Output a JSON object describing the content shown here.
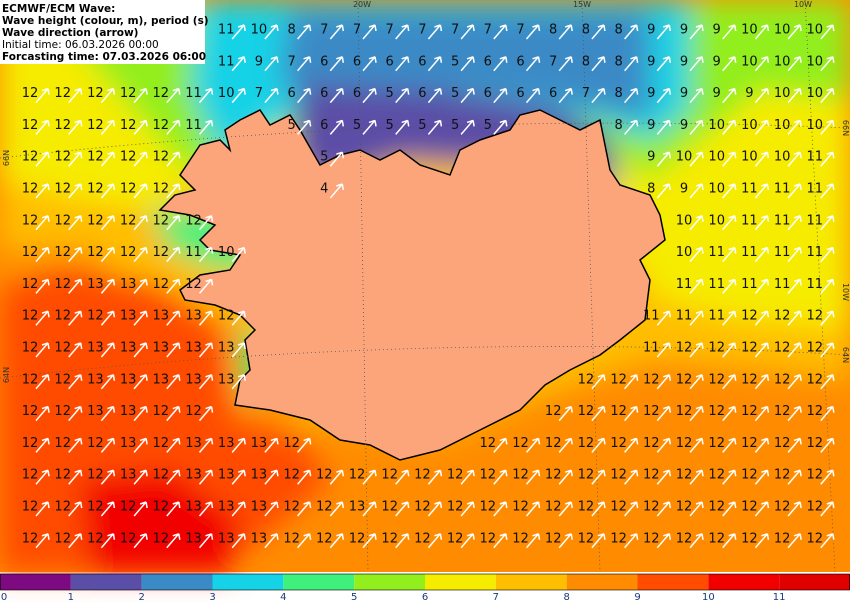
{
  "header": {
    "lines": [
      "ECMWF/ECM Wave:",
      "Wave height (colour, m), period (s)",
      "Wave direction (arrow)",
      "Initial time: 06.03.2026 00:00",
      "Forcasting time: 07.03.2026 06:00"
    ]
  },
  "graticule": {
    "top": [
      "20W",
      "15W",
      "10W"
    ],
    "right": [
      "66N",
      "10W",
      "64N"
    ],
    "left": [
      "66N",
      "64N"
    ]
  },
  "periods": {
    "rows": [
      [
        null,
        null,
        null,
        null,
        null,
        null,
        11,
        10,
        8,
        7,
        7,
        7,
        7,
        7,
        7,
        7,
        8,
        8,
        8,
        9,
        9,
        9,
        10,
        10,
        10
      ],
      [
        null,
        null,
        null,
        null,
        null,
        null,
        11,
        9,
        7,
        6,
        6,
        6,
        6,
        5,
        6,
        6,
        7,
        8,
        8,
        9,
        9,
        9,
        10,
        10,
        10
      ],
      [
        12,
        12,
        12,
        12,
        12,
        11,
        10,
        7,
        6,
        6,
        6,
        5,
        6,
        5,
        6,
        6,
        6,
        7,
        8,
        9,
        9,
        9,
        9,
        10,
        10
      ],
      [
        12,
        12,
        12,
        12,
        12,
        11,
        null,
        null,
        5,
        6,
        5,
        5,
        5,
        5,
        5,
        null,
        null,
        null,
        8,
        9,
        9,
        10,
        10,
        10,
        10
      ],
      [
        12,
        12,
        12,
        12,
        12,
        null,
        null,
        null,
        null,
        5,
        null,
        null,
        null,
        null,
        null,
        null,
        null,
        null,
        null,
        9,
        10,
        10,
        10,
        10,
        11
      ],
      [
        12,
        12,
        12,
        12,
        12,
        null,
        null,
        null,
        null,
        4,
        null,
        null,
        null,
        null,
        null,
        null,
        null,
        null,
        null,
        8,
        9,
        10,
        11,
        11,
        11
      ],
      [
        12,
        12,
        12,
        12,
        12,
        12,
        null,
        null,
        null,
        null,
        null,
        null,
        null,
        null,
        null,
        null,
        null,
        null,
        null,
        null,
        10,
        10,
        11,
        11,
        11
      ],
      [
        12,
        12,
        12,
        12,
        12,
        11,
        10,
        null,
        null,
        null,
        null,
        null,
        null,
        null,
        null,
        null,
        null,
        null,
        null,
        null,
        10,
        11,
        11,
        11,
        11
      ],
      [
        12,
        12,
        13,
        13,
        12,
        12,
        null,
        null,
        null,
        null,
        null,
        null,
        null,
        null,
        null,
        null,
        null,
        null,
        null,
        null,
        11,
        11,
        11,
        11,
        11
      ],
      [
        12,
        12,
        12,
        13,
        13,
        13,
        12,
        null,
        null,
        null,
        null,
        null,
        null,
        null,
        null,
        null,
        null,
        null,
        null,
        11,
        11,
        11,
        12,
        12,
        12
      ],
      [
        12,
        12,
        13,
        13,
        13,
        13,
        13,
        null,
        null,
        null,
        null,
        null,
        null,
        null,
        null,
        null,
        null,
        null,
        null,
        11,
        12,
        12,
        12,
        12,
        12
      ],
      [
        12,
        12,
        13,
        13,
        13,
        13,
        13,
        null,
        null,
        null,
        null,
        null,
        null,
        null,
        null,
        null,
        null,
        12,
        12,
        12,
        12,
        12,
        12,
        12,
        12
      ],
      [
        12,
        12,
        13,
        13,
        12,
        12,
        null,
        null,
        null,
        null,
        null,
        null,
        null,
        null,
        null,
        null,
        12,
        12,
        12,
        12,
        12,
        12,
        12,
        12,
        12
      ],
      [
        12,
        12,
        12,
        13,
        12,
        13,
        13,
        13,
        12,
        null,
        null,
        null,
        null,
        null,
        12,
        12,
        12,
        12,
        12,
        12,
        12,
        12,
        12,
        12,
        12
      ],
      [
        12,
        12,
        12,
        13,
        12,
        13,
        13,
        13,
        12,
        12,
        12,
        12,
        12,
        12,
        12,
        12,
        12,
        12,
        12,
        12,
        12,
        12,
        12,
        12,
        12
      ],
      [
        12,
        12,
        12,
        12,
        12,
        13,
        13,
        13,
        12,
        12,
        13,
        12,
        12,
        12,
        12,
        12,
        12,
        12,
        12,
        12,
        12,
        12,
        12,
        12,
        12
      ],
      [
        12,
        12,
        12,
        12,
        12,
        13,
        13,
        13,
        12,
        12,
        12,
        12,
        12,
        12,
        12,
        12,
        12,
        12,
        12,
        12,
        12,
        12,
        12,
        12,
        12
      ]
    ]
  },
  "colorbar": {
    "labels": [
      0,
      1,
      2,
      3,
      4,
      5,
      6,
      7,
      8,
      9,
      10,
      11
    ],
    "colors": [
      "#7d0a80",
      "#5b4ea6",
      "#3a8ac6",
      "#16d2e6",
      "#3ff07c",
      "#92ee1c",
      "#f6ec00",
      "#ffbe00",
      "#ff8c00",
      "#ff4c00",
      "#f20000",
      "#e00000"
    ]
  }
}
